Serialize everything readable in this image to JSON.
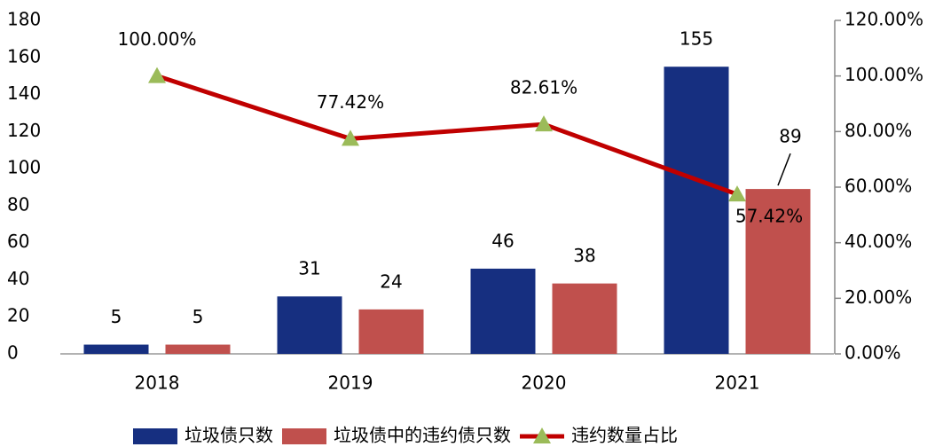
{
  "chart_data": {
    "type": "bar",
    "categories": [
      "2018",
      "2019",
      "2020",
      "2021"
    ],
    "series": [
      {
        "name": "垃圾债只数",
        "type": "bar",
        "color": "#162f80",
        "values": [
          5,
          31,
          46,
          155
        ]
      },
      {
        "name": "垃圾债中的违约债只数",
        "type": "bar",
        "color": "#c0504d",
        "values": [
          5,
          24,
          38,
          89
        ]
      },
      {
        "name": "违约数量占比",
        "type": "line",
        "axis": "y2",
        "color": "#c00000",
        "marker_color": "#9bbb59",
        "values": [
          100,
          77.42,
          82.61,
          57.42
        ],
        "value_labels": [
          "100.00%",
          "77.42%",
          "82.61%",
          "57.42%"
        ]
      }
    ],
    "ylim": [
      0,
      180
    ],
    "yticks": [
      0,
      20,
      40,
      60,
      80,
      100,
      120,
      140,
      160,
      180
    ],
    "y2lim": [
      0,
      120
    ],
    "y2ticks": [
      {
        "value": 0,
        "label": "0.00%"
      },
      {
        "value": 20,
        "label": "20.00%"
      },
      {
        "value": 40,
        "label": "40.00%"
      },
      {
        "value": 60,
        "label": "60.00%"
      },
      {
        "value": 80,
        "label": "80.00%"
      },
      {
        "value": 100,
        "label": "100.00%"
      },
      {
        "value": 120,
        "label": "120.00%"
      }
    ],
    "grid": false,
    "legend": "bottom"
  }
}
